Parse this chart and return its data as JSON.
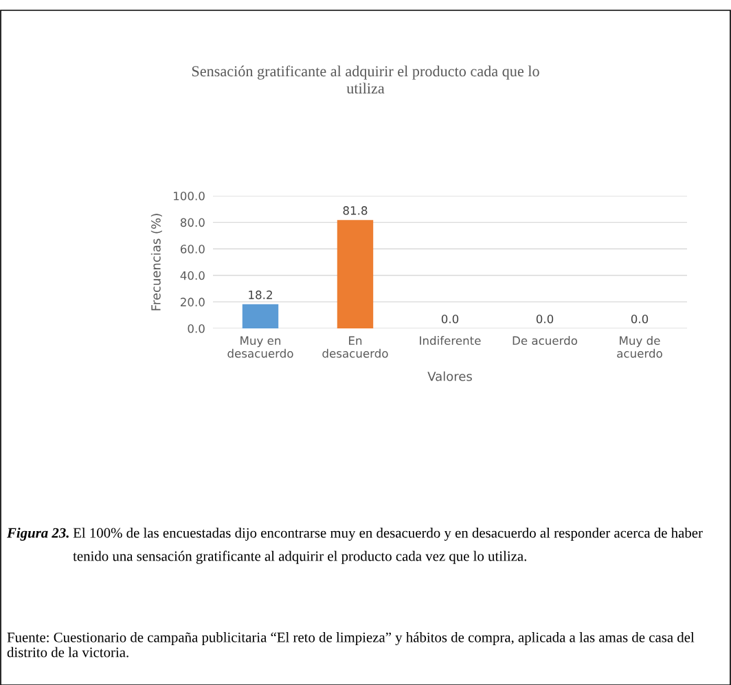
{
  "chart_data": {
    "type": "bar",
    "title": "Sensación gratificante al adquirir el producto cada que lo\nutiliza",
    "xlabel": "Valores",
    "ylabel": "Frecuencias (%)",
    "categories": [
      "Muy en\ndesacuerdo",
      "En\ndesacuerdo",
      "Indiferente",
      "De acuerdo",
      "Muy de\nacuerdo"
    ],
    "values": [
      18.2,
      81.8,
      0.0,
      0.0,
      0.0
    ],
    "colors": [
      "#5b9bd5",
      "#ed7d31",
      "#a5a5a5",
      "#c9a000",
      "#2f4f8f"
    ],
    "value_labels": [
      "18.2",
      "81.8",
      "0.0",
      "0.0",
      "0.0"
    ],
    "ylim": [
      0,
      100
    ],
    "yticks": [
      {
        "value": 0,
        "label": "0.0"
      },
      {
        "value": 20,
        "label": "20.0"
      },
      {
        "value": 40,
        "label": "40.0"
      },
      {
        "value": 60,
        "label": "60.0"
      },
      {
        "value": 80,
        "label": "80.0"
      },
      {
        "value": 100,
        "label": "100.0"
      }
    ],
    "grid": "y",
    "annotations": [
      "Figura 23.",
      "El 100% de las encuestadas dijo encontrarse muy en desacuerdo y en desacuerdo al responder acerca de haber tenido una sensación gratificante al adquirir el producto cada vez que lo utiliza.",
      "Fuente: Cuestionario de campaña publicitaria “El reto de limpieza” y hábitos de compra, aplicada a las amas de casa del distrito de la victoria."
    ]
  }
}
